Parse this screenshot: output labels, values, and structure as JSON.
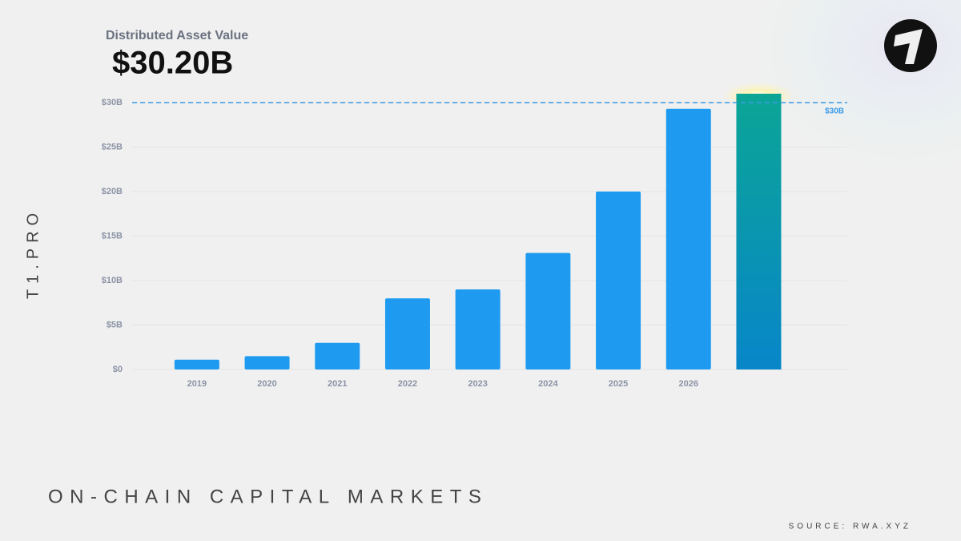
{
  "chart_data": {
    "type": "bar",
    "subtitle": "Distributed Asset Value",
    "title": "$30.20B",
    "brand": "T1.PRO",
    "footer": "ON-CHAIN CAPITAL MARKETS",
    "source": "SOURCE: RWA.XYZ",
    "categories": [
      "2019",
      "2020",
      "2021",
      "2022",
      "2023",
      "2024",
      "2025",
      "2026",
      null
    ],
    "values": [
      1.1,
      1.5,
      3.0,
      8.0,
      9.0,
      13.1,
      20.0,
      29.3,
      31.0
    ],
    "color": "#1e9bf0",
    "last_bar_gradient": [
      "#0ba596",
      "#0886c9"
    ],
    "ylim": [
      0,
      30
    ],
    "yticks": [
      {
        "value": 0,
        "label": "$0"
      },
      {
        "value": 5,
        "label": "$5B"
      },
      {
        "value": 10,
        "label": "$10B"
      },
      {
        "value": 15,
        "label": "$15B"
      },
      {
        "value": 20,
        "label": "$20B"
      },
      {
        "value": 25,
        "label": "$25B"
      },
      {
        "value": 30,
        "label": "$30B"
      }
    ],
    "reference_line": {
      "value": 30,
      "label": "$30B",
      "color": "#3a9be8"
    },
    "grid": true
  }
}
